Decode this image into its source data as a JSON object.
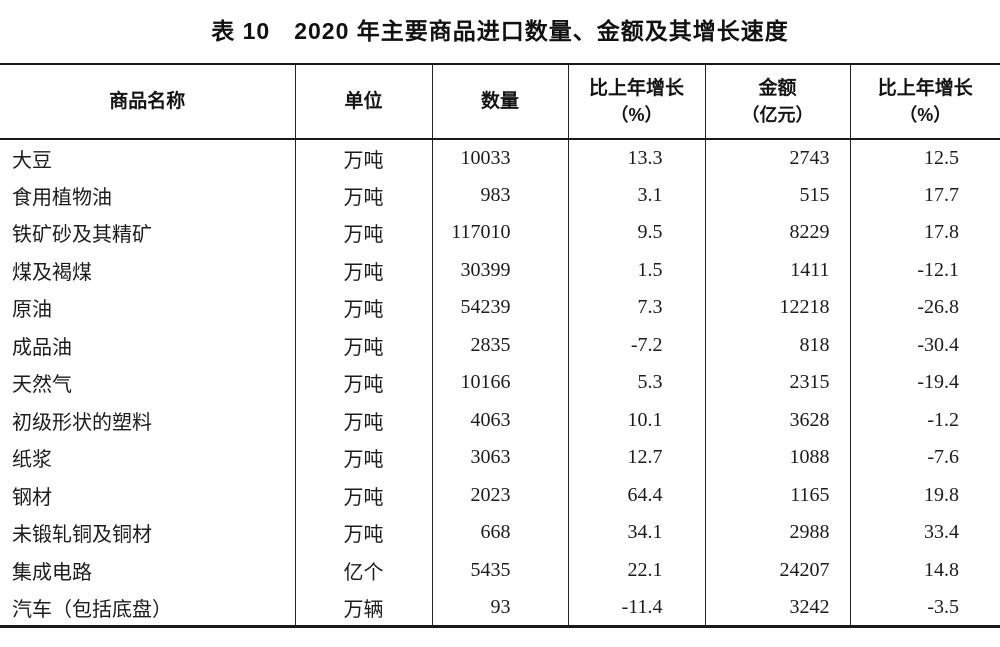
{
  "title": "表 10　2020 年主要商品进口数量、金额及其增长速度",
  "table": {
    "headers": [
      {
        "line1": "商品名称",
        "line2": ""
      },
      {
        "line1": "单位",
        "line2": ""
      },
      {
        "line1": "数量",
        "line2": ""
      },
      {
        "line1": "比上年增长",
        "line2": "（%）"
      },
      {
        "line1": "金额",
        "line2": "（亿元）"
      },
      {
        "line1": "比上年增长",
        "line2": "（%）"
      }
    ],
    "rows": [
      {
        "name": "大豆",
        "unit": "万吨",
        "quantity": "10033",
        "quantity_growth": "13.3",
        "amount": "2743",
        "amount_growth": "12.5"
      },
      {
        "name": "食用植物油",
        "unit": "万吨",
        "quantity": "983",
        "quantity_growth": "3.1",
        "amount": "515",
        "amount_growth": "17.7"
      },
      {
        "name": "铁矿砂及其精矿",
        "unit": "万吨",
        "quantity": "117010",
        "quantity_growth": "9.5",
        "amount": "8229",
        "amount_growth": "17.8"
      },
      {
        "name": "煤及褐煤",
        "unit": "万吨",
        "quantity": "30399",
        "quantity_growth": "1.5",
        "amount": "1411",
        "amount_growth": "-12.1"
      },
      {
        "name": "原油",
        "unit": "万吨",
        "quantity": "54239",
        "quantity_growth": "7.3",
        "amount": "12218",
        "amount_growth": "-26.8"
      },
      {
        "name": "成品油",
        "unit": "万吨",
        "quantity": "2835",
        "quantity_growth": "-7.2",
        "amount": "818",
        "amount_growth": "-30.4"
      },
      {
        "name": "天然气",
        "unit": "万吨",
        "quantity": "10166",
        "quantity_growth": "5.3",
        "amount": "2315",
        "amount_growth": "-19.4"
      },
      {
        "name": "初级形状的塑料",
        "unit": "万吨",
        "quantity": "4063",
        "quantity_growth": "10.1",
        "amount": "3628",
        "amount_growth": "-1.2"
      },
      {
        "name": "纸浆",
        "unit": "万吨",
        "quantity": "3063",
        "quantity_growth": "12.7",
        "amount": "1088",
        "amount_growth": "-7.6"
      },
      {
        "name": "钢材",
        "unit": "万吨",
        "quantity": "2023",
        "quantity_growth": "64.4",
        "amount": "1165",
        "amount_growth": "19.8"
      },
      {
        "name": "未锻轧铜及铜材",
        "unit": "万吨",
        "quantity": "668",
        "quantity_growth": "34.1",
        "amount": "2988",
        "amount_growth": "33.4"
      },
      {
        "name": "集成电路",
        "unit": "亿个",
        "quantity": "5435",
        "quantity_growth": "22.1",
        "amount": "24207",
        "amount_growth": "14.8"
      },
      {
        "name": "汽车（包括底盘）",
        "unit": "万辆",
        "quantity": "93",
        "quantity_growth": "-11.4",
        "amount": "3242",
        "amount_growth": "-3.5"
      }
    ]
  }
}
